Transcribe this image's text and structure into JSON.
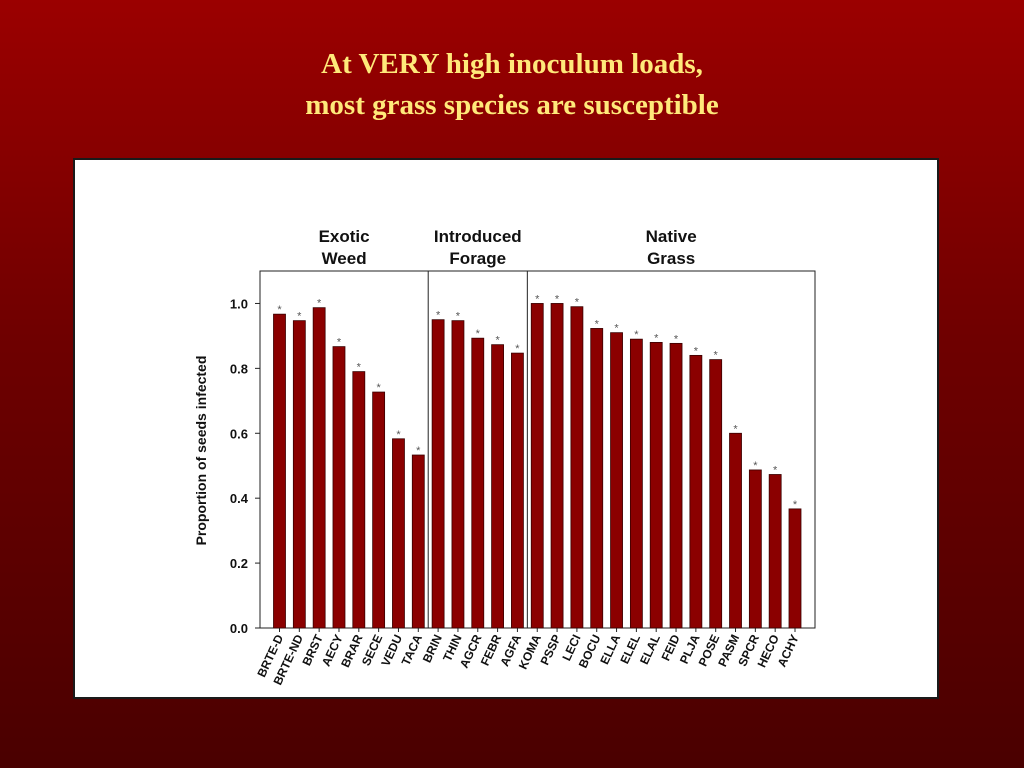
{
  "title": {
    "line1": "At VERY high inoculum loads,",
    "line2": "most grass species are susceptible"
  },
  "colors": {
    "background": "#8b0000",
    "title": "#ffe97a",
    "bar": "#8b0000",
    "bar_edge": "#3a0000",
    "panel": "#ffffff"
  },
  "chart_data": {
    "type": "bar",
    "ylabel": "Proportion of seeds infected",
    "xlabel": "",
    "ylim": [
      0,
      1.1
    ],
    "yticks": [
      "0.0",
      "0.2",
      "0.4",
      "0.6",
      "0.8",
      "1.0"
    ],
    "grid": false,
    "significance_marker": "*",
    "groups": [
      {
        "label_line1": "Exotic",
        "label_line2": "Weed",
        "start": 0,
        "end": 7
      },
      {
        "label_line1": "Introduced",
        "label_line2": "Forage",
        "start": 8,
        "end": 12
      },
      {
        "label_line1": "Native",
        "label_line2": "Grass",
        "start": 13,
        "end": 26
      }
    ],
    "categories": [
      "BRTE-D",
      "BRTE-ND",
      "BRST",
      "AECY",
      "BRAR",
      "SECE",
      "VEDU",
      "TACA",
      "BRIN",
      "THIN",
      "AGCR",
      "FEBR",
      "AGFA",
      "KOMA",
      "PSSP",
      "LECI",
      "BOCU",
      "ELLA",
      "ELEL",
      "ELAL",
      "FEID",
      "PLJA",
      "POSE",
      "PASM",
      "SPCR",
      "HECO",
      "ACHY"
    ],
    "values": [
      0.967,
      0.947,
      0.987,
      0.867,
      0.79,
      0.727,
      0.583,
      0.533,
      0.95,
      0.947,
      0.893,
      0.873,
      0.847,
      1.0,
      1.0,
      0.99,
      0.923,
      0.91,
      0.89,
      0.88,
      0.877,
      0.84,
      0.827,
      0.6,
      0.487,
      0.473,
      0.367
    ],
    "significant": [
      true,
      true,
      true,
      true,
      true,
      true,
      true,
      true,
      true,
      true,
      true,
      true,
      true,
      true,
      true,
      true,
      true,
      true,
      true,
      true,
      true,
      true,
      true,
      true,
      true,
      true,
      true
    ]
  }
}
